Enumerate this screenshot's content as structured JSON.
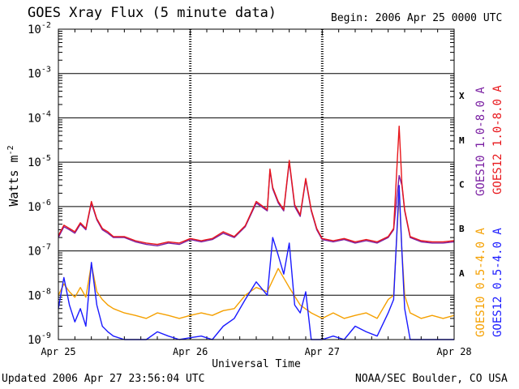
{
  "chart_data": {
    "type": "line",
    "title": "GOES Xray Flux (5 minute data)",
    "begin_label": "Begin:  2006 Apr 25 0000 UTC",
    "xlabel": "Universal Time",
    "ylabel_base": "Watts m",
    "ylabel_exp": "-2",
    "x_ticks": [
      "Apr 25",
      "Apr 26",
      "Apr 27",
      "Apr 28"
    ],
    "y_ticks": [
      {
        "base": "10",
        "exp": "-2"
      },
      {
        "base": "10",
        "exp": "-3"
      },
      {
        "base": "10",
        "exp": "-4"
      },
      {
        "base": "10",
        "exp": "-5"
      },
      {
        "base": "10",
        "exp": "-6"
      },
      {
        "base": "10",
        "exp": "-7"
      },
      {
        "base": "10",
        "exp": "-8"
      },
      {
        "base": "10",
        "exp": "-9"
      }
    ],
    "ylim": [
      1e-09,
      0.01
    ],
    "y_scale": "log",
    "xlim_hours": [
      0,
      72
    ],
    "grid": true,
    "flare_classes": [
      "X",
      "M",
      "C",
      "B",
      "A"
    ],
    "legend_right": [
      "GOES10 1.0-8.0 A",
      "GOES12 1.0-8.0 A"
    ],
    "legend_bottom_right": [
      "GOES10 0.5-4.0 A",
      "GOES12 0.5-4.0 A"
    ],
    "series": [
      {
        "name": "GOES10 1.0-8.0 A",
        "color": "#7a1fa2",
        "x": [
          0,
          1,
          2,
          3,
          4,
          5,
          6,
          7,
          8,
          9,
          10,
          12,
          14,
          16,
          18,
          20,
          22,
          24,
          26,
          28,
          30,
          32,
          34,
          36,
          38,
          38.5,
          39,
          40,
          41,
          42,
          43,
          44,
          45,
          46,
          47,
          48,
          50,
          52,
          54,
          56,
          58,
          60,
          61,
          62,
          62.5,
          63,
          64,
          66,
          68,
          70,
          72
        ],
        "y": [
          2e-07,
          3.5e-07,
          3e-07,
          2.5e-07,
          4e-07,
          3e-07,
          1.2e-06,
          5e-07,
          3e-07,
          2.5e-07,
          2e-07,
          2e-07,
          1.6e-07,
          1.4e-07,
          1.3e-07,
          1.5e-07,
          1.4e-07,
          1.8e-07,
          1.6e-07,
          1.8e-07,
          2.5e-07,
          2e-07,
          3.5e-07,
          1.2e-06,
          8e-07,
          6.5e-06,
          2.5e-06,
          1.2e-06,
          8e-07,
          1e-05,
          1e-06,
          6e-07,
          4e-06,
          8e-07,
          3e-07,
          1.8e-07,
          1.6e-07,
          1.8e-07,
          1.5e-07,
          1.7e-07,
          1.5e-07,
          2e-07,
          3e-07,
          5e-06,
          3e-06,
          8e-07,
          2e-07,
          1.6e-07,
          1.5e-07,
          1.5e-07,
          1.6e-07
        ]
      },
      {
        "name": "GOES12 1.0-8.0 A",
        "color": "#e8161b",
        "x": [
          0,
          1,
          2,
          3,
          4,
          5,
          6,
          7,
          8,
          9,
          10,
          12,
          14,
          16,
          18,
          20,
          22,
          24,
          26,
          28,
          30,
          32,
          34,
          36,
          38,
          38.5,
          39,
          40,
          41,
          42,
          43,
          44,
          45,
          46,
          47,
          48,
          50,
          52,
          54,
          56,
          58,
          60,
          61,
          62,
          62.5,
          63,
          64,
          66,
          68,
          70,
          72
        ],
        "y": [
          2.2e-07,
          3.8e-07,
          3.2e-07,
          2.7e-07,
          4.3e-07,
          3.2e-07,
          1.3e-06,
          5.3e-07,
          3.2e-07,
          2.7e-07,
          2.1e-07,
          2.1e-07,
          1.7e-07,
          1.5e-07,
          1.4e-07,
          1.6e-07,
          1.5e-07,
          1.9e-07,
          1.7e-07,
          1.9e-07,
          2.7e-07,
          2.1e-07,
          3.7e-07,
          1.3e-06,
          8.5e-07,
          7e-06,
          2.7e-06,
          1.3e-06,
          8.5e-07,
          1.1e-05,
          1.1e-06,
          6.5e-07,
          4.3e-06,
          8.5e-07,
          3.2e-07,
          1.9e-07,
          1.7e-07,
          1.9e-07,
          1.6e-07,
          1.8e-07,
          1.6e-07,
          2.1e-07,
          3.2e-07,
          6.5e-05,
          3.3e-06,
          8.5e-07,
          2.1e-07,
          1.7e-07,
          1.6e-07,
          1.6e-07,
          1.7e-07
        ]
      },
      {
        "name": "GOES10 0.5-4.0 A",
        "color": "#f5a000",
        "x": [
          0,
          1,
          2,
          3,
          4,
          5,
          6,
          7,
          8,
          9,
          10,
          12,
          14,
          16,
          18,
          20,
          22,
          24,
          26,
          28,
          30,
          32,
          34,
          36,
          38,
          40,
          42,
          44,
          46,
          48,
          50,
          52,
          54,
          56,
          58,
          60,
          61,
          62,
          62.5,
          63,
          64,
          66,
          68,
          70,
          72
        ],
        "y": [
          1e-08,
          1.8e-08,
          1.2e-08,
          9e-09,
          1.5e-08,
          9e-09,
          5e-08,
          1.2e-08,
          8e-09,
          6e-09,
          5e-09,
          4e-09,
          3.5e-09,
          3e-09,
          4e-09,
          3.5e-09,
          3e-09,
          3.5e-09,
          4e-09,
          3.5e-09,
          4.5e-09,
          5e-09,
          1e-08,
          1.5e-08,
          1.2e-08,
          4e-08,
          1.5e-08,
          6e-09,
          4e-09,
          3e-09,
          4e-09,
          3e-09,
          3.5e-09,
          4e-09,
          3e-09,
          8e-09,
          1e-08,
          2e-06,
          1e-07,
          1e-08,
          4e-09,
          3e-09,
          3.5e-09,
          3e-09,
          3.5e-09
        ]
      },
      {
        "name": "GOES12 0.5-4.0 A",
        "color": "#1a1aff",
        "x": [
          0,
          1,
          2,
          3,
          4,
          5,
          6,
          7,
          8,
          9,
          10,
          12,
          14,
          16,
          18,
          20,
          22,
          24,
          26,
          28,
          30,
          32,
          34,
          36,
          38,
          39,
          40,
          41,
          42,
          43,
          44,
          45,
          46,
          48,
          50,
          52,
          54,
          56,
          58,
          60,
          61,
          62,
          62.5,
          63,
          64,
          66,
          68,
          70,
          72
        ],
        "y": [
          5e-09,
          2.5e-08,
          6e-09,
          2.5e-09,
          5e-09,
          2e-09,
          5.5e-08,
          6e-09,
          2e-09,
          1.5e-09,
          1.2e-09,
          1e-09,
          1e-09,
          1e-09,
          1.5e-09,
          1.2e-09,
          1e-09,
          1.1e-09,
          1.2e-09,
          1e-09,
          2e-09,
          3e-09,
          8e-09,
          2e-08,
          1e-08,
          2e-07,
          8e-08,
          3e-08,
          1.5e-07,
          6e-09,
          4e-09,
          1.2e-08,
          1e-09,
          1e-09,
          1.2e-09,
          1e-09,
          2e-09,
          1.5e-09,
          1.2e-09,
          4e-09,
          8e-09,
          3e-06,
          1e-07,
          5e-09,
          1e-09,
          1e-09,
          1e-09,
          1e-09,
          1e-09
        ]
      }
    ]
  },
  "footer": {
    "updated": "Updated 2006 Apr 27 23:56:04 UTC",
    "credit": "NOAA/SEC Boulder, CO USA"
  }
}
